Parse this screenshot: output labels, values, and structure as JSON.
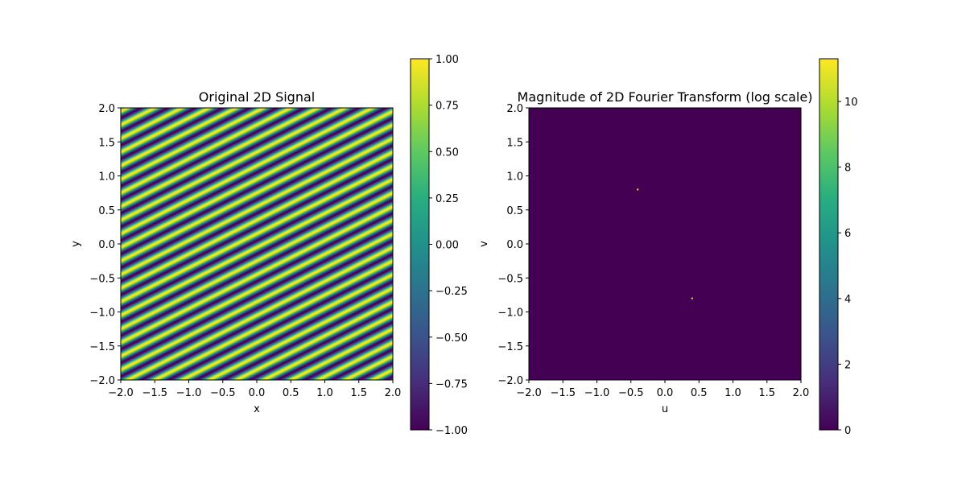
{
  "chart_data": [
    {
      "type": "heatmap",
      "title": "Original 2D Signal",
      "xlabel": "x",
      "ylabel": "y",
      "xlim": [
        -2.0,
        2.0
      ],
      "ylim": [
        -2.0,
        2.0
      ],
      "xticks": [
        "−2.0",
        "−1.5",
        "−1.0",
        "−0.5",
        "0.0",
        "0.5",
        "1.0",
        "1.5",
        "2.0"
      ],
      "yticks": [
        "−2.0",
        "−1.5",
        "−1.0",
        "−0.5",
        "0.0",
        "0.5",
        "1.0",
        "1.5",
        "2.0"
      ],
      "colormap": "viridis",
      "pattern": {
        "description": "sinusoidal diagonal stripes",
        "fx": 10,
        "fy": -20
      },
      "colorbar": {
        "range": [
          -1.0,
          1.0
        ],
        "ticks": [
          -1.0,
          -0.75,
          -0.5,
          -0.25,
          0.0,
          0.25,
          0.5,
          0.75,
          1.0
        ],
        "tick_labels": [
          "−1.00",
          "−0.75",
          "−0.50",
          "−0.25",
          "0.00",
          "0.25",
          "0.50",
          "0.75",
          "1.00"
        ]
      }
    },
    {
      "type": "heatmap",
      "title": "Magnitude of 2D Fourier Transform (log scale)",
      "xlabel": "u",
      "ylabel": "v",
      "xlim": [
        -2.0,
        2.0
      ],
      "ylim": [
        -2.0,
        2.0
      ],
      "xticks": [
        "−2.0",
        "−1.5",
        "−1.0",
        "−0.5",
        "0.0",
        "0.5",
        "1.0",
        "1.5",
        "2.0"
      ],
      "yticks": [
        "−2.0",
        "−1.5",
        "−1.0",
        "−0.5",
        "0.0",
        "0.5",
        "1.0",
        "1.5",
        "2.0"
      ],
      "colormap": "viridis",
      "background_value": 0,
      "peaks": [
        {
          "u": -0.4,
          "v": 0.8,
          "value": 11.3
        },
        {
          "u": 0.4,
          "v": -0.8,
          "value": 11.3
        }
      ],
      "colorbar": {
        "range": [
          0,
          11.3
        ],
        "ticks": [
          0,
          2,
          4,
          6,
          8,
          10
        ],
        "tick_labels": [
          "0",
          "2",
          "4",
          "6",
          "8",
          "10"
        ]
      }
    }
  ]
}
